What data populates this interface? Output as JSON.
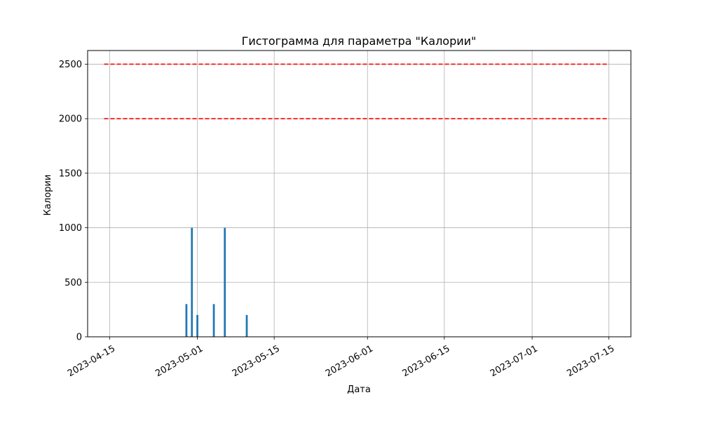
{
  "chart_data": {
    "type": "bar",
    "title": "Гистограмма для параметра \"Калории\"",
    "xlabel": "Дата",
    "ylabel": "Калории",
    "x_min": "2023-04-11",
    "x_max": "2023-07-19",
    "y_min": 0,
    "y_max": 2625,
    "yticks": [
      0,
      500,
      1000,
      1500,
      2000,
      2500
    ],
    "xticks": [
      "2023-04-15",
      "2023-05-01",
      "2023-05-15",
      "2023-06-01",
      "2023-06-15",
      "2023-07-01",
      "2023-07-15"
    ],
    "grid": true,
    "bar_color": "#1f77b4",
    "bars": [
      {
        "date": "2023-04-29",
        "value": 300
      },
      {
        "date": "2023-04-30",
        "value": 1000
      },
      {
        "date": "2023-05-01",
        "value": 200
      },
      {
        "date": "2023-05-04",
        "value": 300
      },
      {
        "date": "2023-05-06",
        "value": 1000
      },
      {
        "date": "2023-05-10",
        "value": 200
      }
    ],
    "reference_lines": [
      {
        "value": 2000,
        "from": "2023-04-14",
        "to": "2023-07-15",
        "color": "#ff0000",
        "style": "dashed"
      },
      {
        "value": 2500,
        "from": "2023-04-14",
        "to": "2023-07-15",
        "color": "#ff0000",
        "style": "dashed"
      }
    ]
  }
}
